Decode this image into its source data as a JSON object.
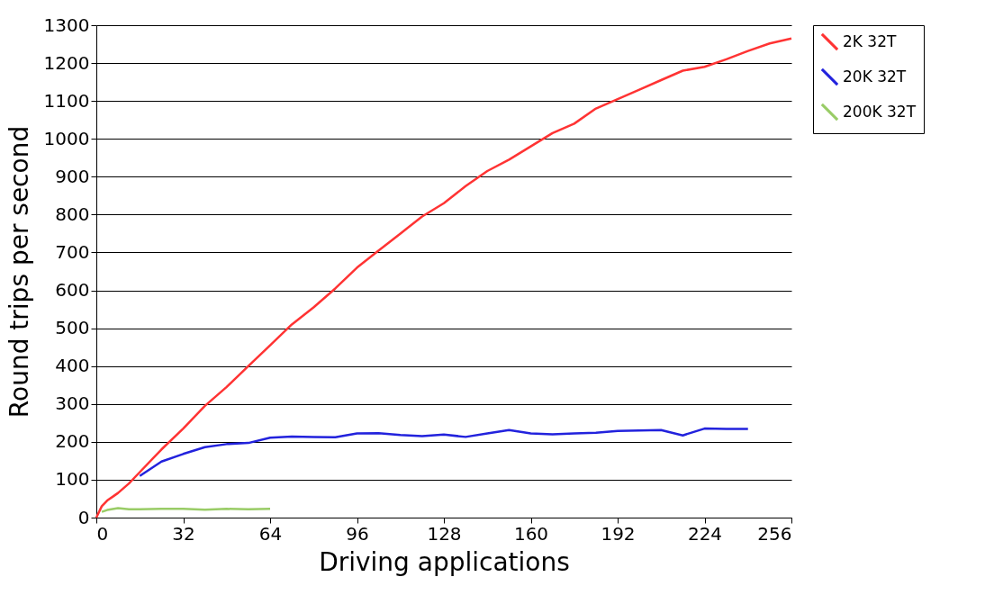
{
  "chart_data": {
    "type": "line",
    "xlabel": "Driving applications",
    "ylabel": "Round trips per second",
    "xlim": [
      0,
      256
    ],
    "xticks": [
      0,
      32,
      64,
      96,
      128,
      160,
      192,
      224,
      256
    ],
    "ylim": [
      0,
      1300
    ],
    "yticks": [
      0,
      100,
      200,
      300,
      400,
      500,
      600,
      700,
      800,
      900,
      {
        "value": 1000,
        "label": "1000"
      },
      {
        "value": 1100,
        "label": "1100"
      },
      {
        "value": 1200,
        "label": "1200"
      },
      {
        "value": 1300,
        "label": "1300"
      }
    ],
    "grid": "y",
    "legend": "right",
    "marker": "none",
    "line_style": "solid",
    "series": [
      {
        "name": "2K 32T",
        "color": "#ff3333",
        "x": [
          0,
          2,
          4,
          6,
          8,
          12,
          16,
          24,
          32,
          40,
          48,
          56,
          64,
          72,
          80,
          88,
          96,
          104,
          112,
          120,
          128,
          136,
          144,
          152,
          160,
          168,
          176,
          184,
          192,
          200,
          208,
          216,
          224,
          232,
          240,
          248,
          256
        ],
        "values": [
          0,
          30,
          45,
          55,
          65,
          90,
          120,
          180,
          235,
          295,
          345,
          400,
          455,
          510,
          555,
          605,
          660,
          705,
          750,
          795,
          830,
          875,
          915,
          945,
          980,
          1015,
          1040,
          1080,
          1105,
          1130,
          1155,
          1180,
          1190,
          1210,
          1232,
          1252,
          1265
        ]
      },
      {
        "name": "20K 32T",
        "color": "#2222dd",
        "x": [
          16,
          24,
          32,
          40,
          48,
          56,
          64,
          72,
          80,
          88,
          96,
          104,
          112,
          120,
          128,
          136,
          144,
          152,
          160,
          168,
          176,
          184,
          192,
          200,
          208,
          216,
          224,
          232,
          240
        ],
        "values": [
          110,
          148,
          168,
          186,
          194,
          197,
          211,
          214,
          213,
          212,
          222,
          223,
          218,
          215,
          219,
          213,
          222,
          231,
          222,
          220,
          222,
          224,
          229,
          230,
          231,
          217,
          235,
          234,
          234
        ]
      },
      {
        "name": "200K 32T",
        "color": "#99cc66",
        "x": [
          2,
          4,
          8,
          12,
          16,
          24,
          32,
          40,
          48,
          56,
          64
        ],
        "values": [
          15,
          20,
          25,
          22,
          22,
          23,
          23,
          21,
          23,
          22,
          23
        ]
      }
    ]
  }
}
